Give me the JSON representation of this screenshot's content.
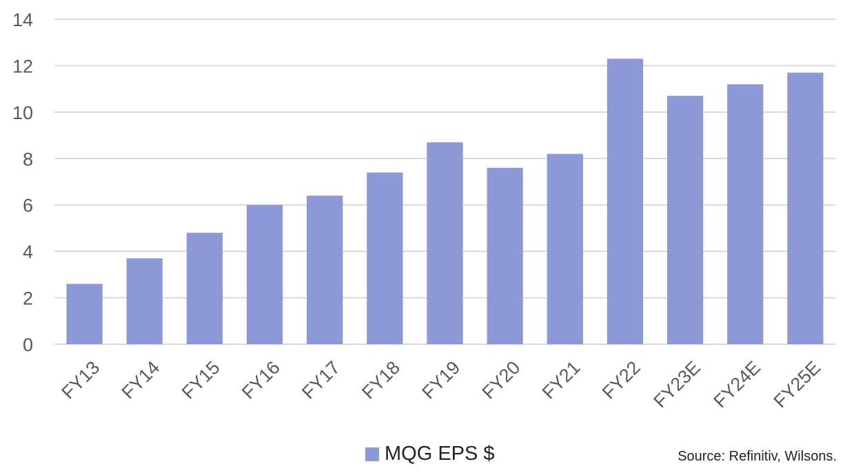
{
  "chart_data": {
    "type": "bar",
    "categories": [
      "FY13",
      "FY14",
      "FY15",
      "FY16",
      "FY17",
      "FY18",
      "FY19",
      "FY20",
      "FY21",
      "FY22",
      "FY23E",
      "FY24E",
      "FY25E"
    ],
    "series": [
      {
        "name": "MQG EPS $",
        "values": [
          2.6,
          3.7,
          4.8,
          6.0,
          6.4,
          7.4,
          8.7,
          7.6,
          8.2,
          12.3,
          10.7,
          11.2,
          11.7
        ]
      }
    ],
    "y_ticks": [
      "0",
      "2",
      "4",
      "6",
      "8",
      "10",
      "12",
      "14"
    ],
    "ylim": [
      0,
      14
    ],
    "grid": true,
    "legend_position": "bottom",
    "colors": {
      "bar": "#8d99d6",
      "grid": "#d9d9d9",
      "axis_text": "#595959"
    }
  },
  "source_note": "Source: Refinitiv, Wilsons."
}
